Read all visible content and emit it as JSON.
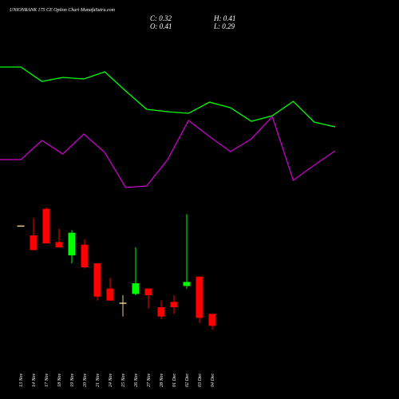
{
  "chart_data": [
    {
      "type": "line",
      "categories": [
        null,
        null,
        null,
        null,
        null,
        null,
        null,
        null,
        null,
        null,
        null,
        null,
        null,
        null,
        null,
        null,
        null
      ],
      "series": [
        {
          "color": "#00ff00",
          "values": [
            88,
            88,
            79,
            81.5,
            80.5,
            85,
            73,
            61.5,
            60,
            59,
            66,
            62.5,
            54,
            57.5,
            66.5,
            53.5,
            50.5
          ]
        },
        {
          "color": "#cc00cc",
          "values": [
            30,
            30,
            42,
            33.5,
            46,
            34.5,
            12.5,
            13.5,
            30,
            54.5,
            44.5,
            35,
            43,
            57,
            17,
            26.5,
            35.5
          ]
        }
      ],
      "ylim": [
        0,
        100
      ]
    },
    {
      "type": "candlestick",
      "title": "UNIONBANK 175 CE Option Chart MunafaSutra.com",
      "ohlc_text": [
        "C: 0.32",
        "H: 0.41",
        "O: 0.41",
        "L: 0.29"
      ],
      "categories": [
        "13 Nov",
        "14 Nov",
        "17 Nov",
        "18 Nov",
        "19 Nov",
        "20 Nov",
        "21 Nov",
        "24 Nov",
        "25 Nov",
        "26 Nov",
        "27 Nov",
        "28 Nov",
        "01 Dec",
        "02 Dec",
        "03 Dec",
        "04 Dec"
      ],
      "open": [
        1.07,
        1.0,
        1.2,
        0.95,
        0.85,
        0.93,
        0.79,
        0.6,
        0.49,
        0.56,
        0.6,
        0.46,
        0.5,
        0.62,
        0.69,
        0.41
      ],
      "high": [
        1.07,
        1.13,
        1.21,
        1.05,
        1.04,
        0.97,
        0.79,
        0.68,
        0.55,
        0.91,
        0.6,
        0.51,
        0.55,
        1.16,
        0.69,
        0.41
      ],
      "low": [
        1.07,
        0.89,
        0.94,
        0.91,
        0.79,
        0.75,
        0.51,
        0.51,
        0.39,
        0.55,
        0.45,
        0.37,
        0.41,
        0.6,
        0.34,
        0.29
      ],
      "close": [
        1.07,
        0.89,
        0.94,
        0.91,
        1.02,
        0.76,
        0.54,
        0.51,
        0.49,
        0.64,
        0.55,
        0.39,
        0.46,
        0.65,
        0.38,
        0.32
      ],
      "up_color": "#00ff00",
      "down_color": "#ff0000",
      "flat_color": "#e8c890",
      "ylim": [
        0.25,
        1.27
      ]
    }
  ]
}
